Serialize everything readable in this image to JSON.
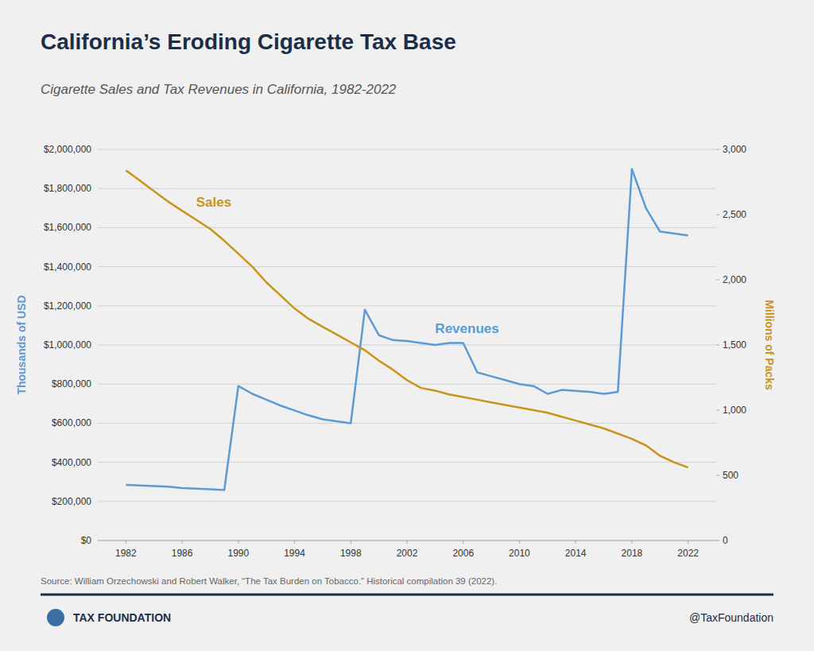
{
  "chart_data": {
    "type": "line",
    "title": "California’s Eroding Cigarette Tax Base",
    "subtitle": "Cigarette Sales and Tax Revenues in California, 1982-2022",
    "source": "Source: William Orzechowski and Robert Walker, “The Tax Burden on Tobacco.” Historical compilation 39 (2022).",
    "footer_left": "TAX FOUNDATION",
    "footer_right": "@TaxFoundation",
    "y_label": "Thousands of USD",
    "y2_label": "Millions of Packs",
    "grid": true,
    "x": [
      1982,
      1983,
      1984,
      1985,
      1986,
      1987,
      1988,
      1989,
      1990,
      1991,
      1992,
      1993,
      1994,
      1995,
      1996,
      1997,
      1998,
      1999,
      2000,
      2001,
      2002,
      2003,
      2004,
      2005,
      2006,
      2007,
      2008,
      2009,
      2010,
      2011,
      2012,
      2013,
      2014,
      2015,
      2016,
      2017,
      2018,
      2019,
      2020,
      2021,
      2022
    ],
    "series": [
      {
        "color": "#5b9bd5",
        "axis": "y",
        "values": [
          285000,
          282000,
          278000,
          275000,
          268000,
          265000,
          262000,
          258000,
          790000,
          750000,
          720000,
          690000,
          665000,
          640000,
          620000,
          610000,
          600000,
          1180000,
          1050000,
          1025000,
          1020000,
          1010000,
          1000000,
          1010000,
          1010000,
          860000,
          840000,
          820000,
          800000,
          790000,
          750000,
          770000,
          765000,
          760000,
          750000,
          760000,
          1900000,
          1700000,
          1580000,
          1570000,
          1560000
        ]
      },
      {
        "color": "#c8941a",
        "axis": "y2",
        "values": [
          2840,
          2760,
          2680,
          2600,
          2530,
          2460,
          2390,
          2300,
          2200,
          2100,
          1980,
          1880,
          1780,
          1700,
          1640,
          1580,
          1520,
          1460,
          1380,
          1310,
          1230,
          1170,
          1150,
          1120,
          1100,
          1080,
          1060,
          1040,
          1020,
          1000,
          980,
          950,
          920,
          890,
          860,
          820,
          780,
          730,
          650,
          600,
          560
        ]
      }
    ],
    "annotations": [
      {
        "text": "Sales",
        "x": 1987,
        "y": 2560,
        "axis": "y2",
        "color": "#c8941a"
      },
      {
        "text": "Revenues",
        "x": 2004,
        "y": 1060000,
        "axis": "y",
        "color": "#5b9bd5"
      }
    ],
    "xlim": [
      1980,
      2024
    ],
    "xticks": [
      1982,
      1986,
      1990,
      1994,
      1998,
      2002,
      2006,
      2010,
      2014,
      2018,
      2022
    ],
    "ylim": [
      0,
      2000000
    ],
    "yticks": [
      {
        "value": 0,
        "label": "$0"
      },
      {
        "value": 200000,
        "label": "$200,000"
      },
      {
        "value": 400000,
        "label": "$400,000"
      },
      {
        "value": 600000,
        "label": "$600,000"
      },
      {
        "value": 800000,
        "label": "$800,000"
      },
      {
        "value": 1000000,
        "label": "$1,000,000"
      },
      {
        "value": 1200000,
        "label": "$1,200,000"
      },
      {
        "value": 1400000,
        "label": "$1,400,000"
      },
      {
        "value": 1600000,
        "label": "$1,600,000"
      },
      {
        "value": 1800000,
        "label": "$1,800,000"
      },
      {
        "value": 2000000,
        "label": "$2,000,000"
      }
    ],
    "y2lim": [
      0,
      3000
    ],
    "y2ticks": [
      0,
      500,
      {
        "value": 1000,
        "label": "1,000"
      },
      {
        "value": 1500,
        "label": "1,500"
      },
      {
        "value": 2000,
        "label": "2,000"
      },
      {
        "value": 2500,
        "label": "2,500"
      },
      {
        "value": 3000,
        "label": "3,000"
      }
    ]
  }
}
